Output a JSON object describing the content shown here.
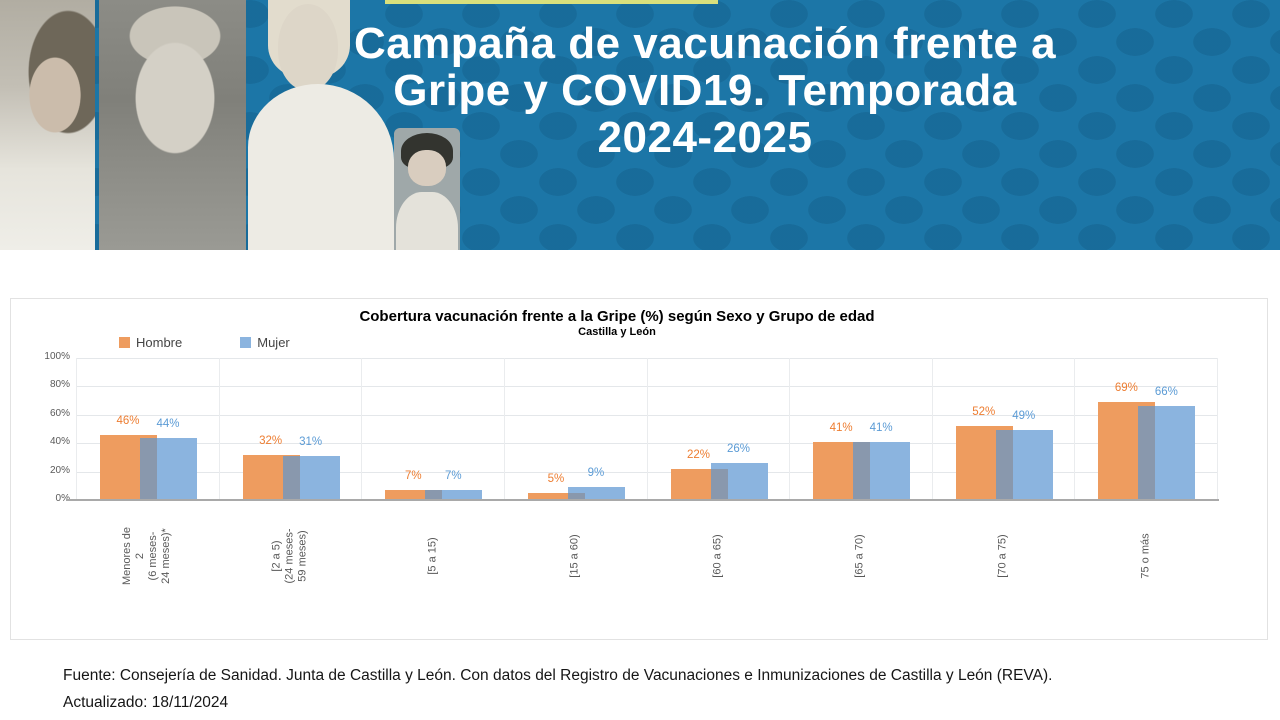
{
  "header": {
    "title_lines": [
      "Campaña de vacunación frente a",
      "Gripe y COVID19. Temporada",
      "2024-2025"
    ],
    "background_color": "#1C76A7",
    "dot_color": "#16688F",
    "accent_strip_color": "#D9E07C"
  },
  "chart_data": {
    "type": "bar",
    "title": "Cobertura vacunación frente a la Gripe (%) según Sexo y Grupo de edad",
    "subtitle": "Castilla y León",
    "categories": [
      [
        "Menores de",
        "2",
        "(6 meses-",
        "24 meses)*"
      ],
      [
        "[2 a 5)",
        "(24 meses-",
        "59 meses)"
      ],
      [
        "[5 a 15)"
      ],
      [
        "[15 a 60)"
      ],
      [
        "[60 a 65)"
      ],
      [
        "[65 a 70)"
      ],
      [
        "[70 a 75)"
      ],
      [
        "75 o más"
      ]
    ],
    "series": [
      {
        "name": "Hombre",
        "color": "#EE9C5F",
        "label_color": "#ED7D31",
        "values": [
          46,
          32,
          7,
          5,
          22,
          41,
          52,
          69
        ]
      },
      {
        "name": "Mujer",
        "color": "#8BB4DF",
        "label_color": "#5B9BD5",
        "values": [
          44,
          31,
          7,
          9,
          26,
          41,
          49,
          66
        ]
      }
    ],
    "overlap_color": "#8998AD",
    "value_suffix": "%",
    "y_ticks": [
      0,
      20,
      40,
      60,
      80,
      100
    ],
    "ylim": [
      0,
      100
    ],
    "grid": true,
    "legend_position": "top-left"
  },
  "footer": {
    "source": "Fuente: Consejería de Sanidad. Junta de Castilla y León. Con datos del Registro de Vacunaciones e Inmunizaciones  de Castilla y León (REVA).",
    "updated": "Actualizado: 18/11/2024"
  }
}
